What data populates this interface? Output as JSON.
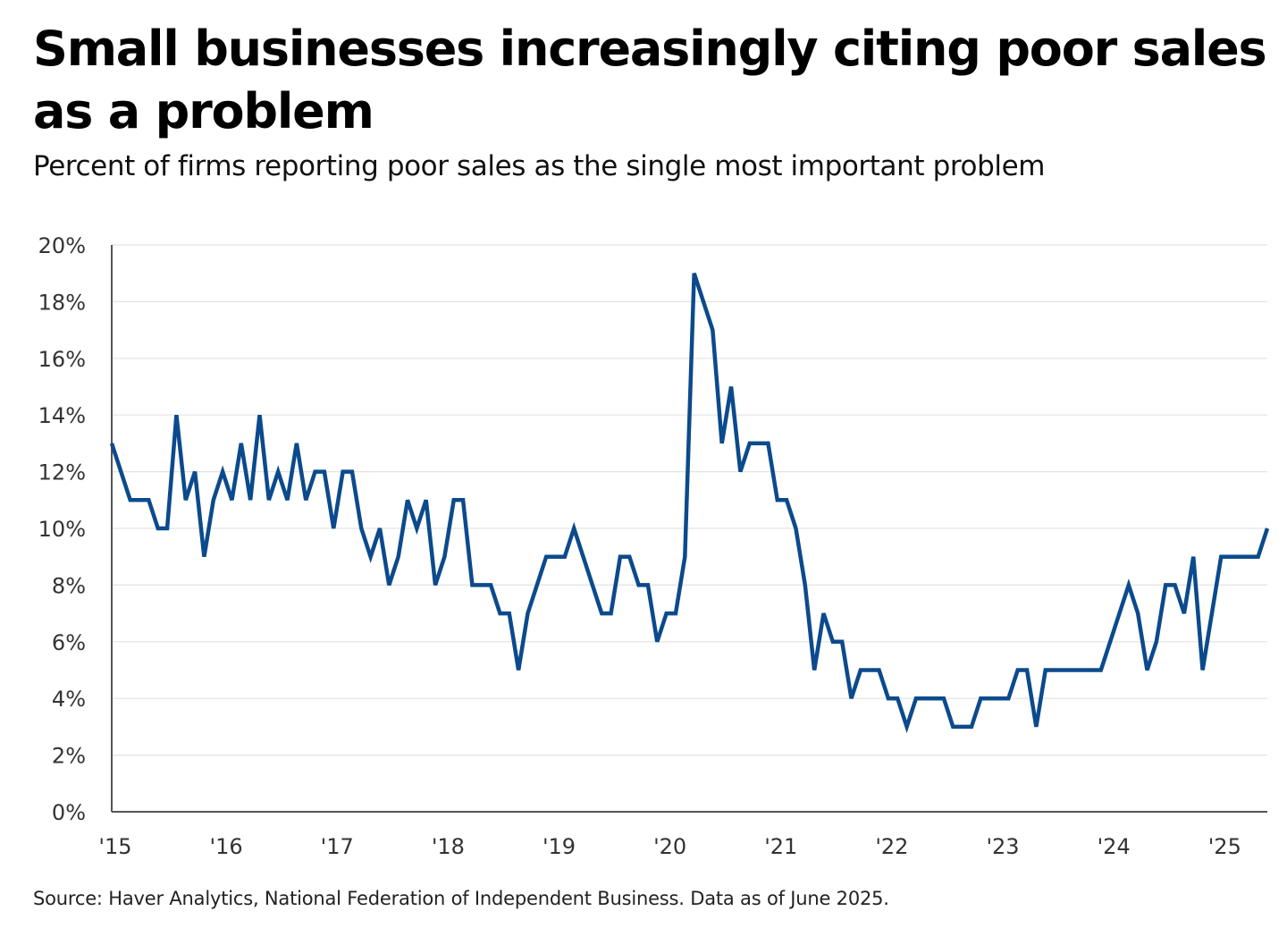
{
  "title": "Small businesses increasingly citing poor sales as a problem",
  "subtitle": "Percent of firms reporting poor sales as the single most important problem",
  "source": "Source: Haver Analytics, National Federation of Independent Business. Data as of June 2025.",
  "colors": {
    "line": "#0b4a8c",
    "grid": "#e3e3e3",
    "axis": "#555555",
    "text": "#333333"
  },
  "chart_data": {
    "type": "line",
    "title": "Small businesses increasingly citing poor sales as a problem",
    "subtitle": "Percent of firms reporting poor sales as the single most important problem",
    "xlabel": "",
    "ylabel": "",
    "xlim": [
      2015.0,
      2025.4167
    ],
    "ylim": [
      0,
      20
    ],
    "grid": true,
    "x_ticks": [
      {
        "value": 2015,
        "label": "'15"
      },
      {
        "value": 2016,
        "label": "'16"
      },
      {
        "value": 2017,
        "label": "'17"
      },
      {
        "value": 2018,
        "label": "'18"
      },
      {
        "value": 2019,
        "label": "'19"
      },
      {
        "value": 2020,
        "label": "'20"
      },
      {
        "value": 2021,
        "label": "'21"
      },
      {
        "value": 2022,
        "label": "'22"
      },
      {
        "value": 2023,
        "label": "'23"
      },
      {
        "value": 2024,
        "label": "'24"
      },
      {
        "value": 2025,
        "label": "'25"
      }
    ],
    "y_ticks": [
      {
        "value": 0,
        "label": "0%"
      },
      {
        "value": 2,
        "label": "2%"
      },
      {
        "value": 4,
        "label": "4%"
      },
      {
        "value": 6,
        "label": "6%"
      },
      {
        "value": 8,
        "label": "8%"
      },
      {
        "value": 10,
        "label": "10%"
      },
      {
        "value": 12,
        "label": "12%"
      },
      {
        "value": 14,
        "label": "14%"
      },
      {
        "value": 16,
        "label": "16%"
      },
      {
        "value": 18,
        "label": "18%"
      },
      {
        "value": 20,
        "label": "20%"
      }
    ],
    "series": [
      {
        "name": "Poor sales",
        "start": "2015-01",
        "frequency": "monthly",
        "values": [
          13,
          12,
          11,
          11,
          11,
          10,
          10,
          14,
          11,
          12,
          9,
          11,
          12,
          11,
          13,
          11,
          14,
          11,
          12,
          11,
          13,
          11,
          12,
          12,
          10,
          12,
          12,
          10,
          9,
          10,
          8,
          9,
          11,
          10,
          11,
          8,
          9,
          11,
          11,
          8,
          8,
          8,
          7,
          7,
          5,
          7,
          8,
          9,
          9,
          9,
          10,
          9,
          8,
          7,
          7,
          9,
          9,
          8,
          8,
          6,
          7,
          7,
          9,
          19,
          18,
          17,
          13,
          15,
          12,
          13,
          13,
          13,
          11,
          11,
          10,
          8,
          5,
          7,
          6,
          6,
          4,
          5,
          5,
          5,
          4,
          4,
          3,
          4,
          4,
          4,
          4,
          3,
          3,
          3,
          4,
          4,
          4,
          4,
          5,
          5,
          3,
          5,
          5,
          5,
          5,
          5,
          5,
          5,
          6,
          7,
          8,
          7,
          5,
          6,
          8,
          8,
          7,
          9,
          5,
          7,
          9,
          9,
          9,
          9,
          9,
          10
        ]
      }
    ]
  }
}
